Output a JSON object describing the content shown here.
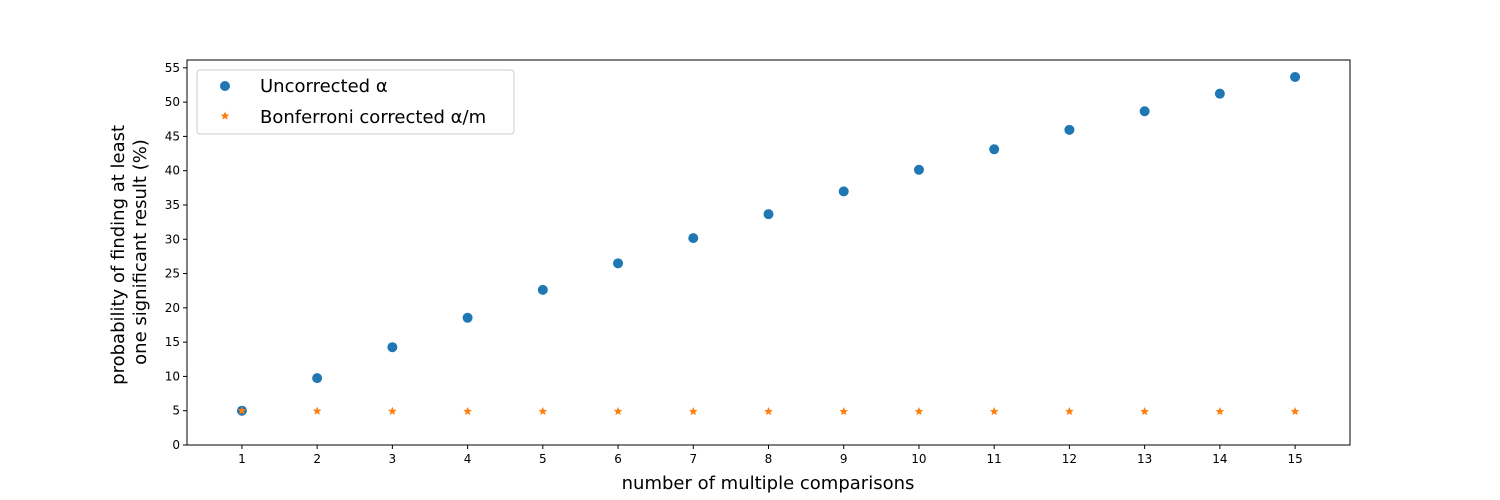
{
  "chart_data": {
    "type": "scatter",
    "xlabel": "number of multiple comparisons",
    "ylabel_lines": [
      "probability of finding at least",
      "one significant result (%)"
    ],
    "xlim": [
      0.27,
      15.73
    ],
    "ylim": [
      0,
      56.14
    ],
    "x_ticks": [
      1,
      2,
      3,
      4,
      5,
      6,
      7,
      8,
      9,
      10,
      11,
      12,
      13,
      14,
      15
    ],
    "y_ticks": [
      0,
      5,
      10,
      15,
      20,
      25,
      30,
      35,
      40,
      45,
      50,
      55
    ],
    "grid": false,
    "legend_position": "top-left",
    "x": [
      1,
      2,
      3,
      4,
      5,
      6,
      7,
      8,
      9,
      10,
      11,
      12,
      13,
      14,
      15
    ],
    "series": [
      {
        "name": "Uncorrected α",
        "marker": "circle",
        "color": "#1f77b4",
        "values": [
          5.0,
          9.75,
          14.26,
          18.55,
          22.62,
          26.49,
          30.17,
          33.66,
          36.98,
          40.13,
          43.12,
          45.96,
          48.67,
          51.23,
          53.67
        ]
      },
      {
        "name": "Bonferroni corrected α/m",
        "marker": "star",
        "color": "#ff7f0e",
        "values": [
          5.0,
          4.94,
          4.92,
          4.91,
          4.9,
          4.9,
          4.89,
          4.89,
          4.89,
          4.89,
          4.89,
          4.89,
          4.89,
          4.88,
          4.88
        ]
      }
    ]
  }
}
